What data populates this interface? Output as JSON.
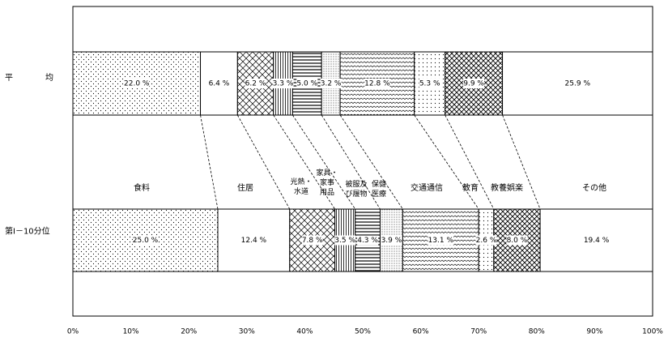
{
  "chart_data": {
    "type": "stacked-bar-100",
    "orientation": "horizontal",
    "grid": false,
    "xlim": [
      0,
      100
    ],
    "x_ticks": [
      "0%",
      "10%",
      "20%",
      "30%",
      "40%",
      "50%",
      "60%",
      "70%",
      "80%",
      "90%",
      "100%"
    ],
    "rows": [
      {
        "name": "平　　　　均",
        "values": [
          22.0,
          6.4,
          6.2,
          3.3,
          5.0,
          3.2,
          12.8,
          5.3,
          9.9,
          25.9
        ],
        "value_labels": [
          "22.0 %",
          "6.4 %",
          "6.2 %",
          "3.3 %",
          "5.0 %",
          "3.2 %",
          "12.8 %",
          "5.3 %",
          "9.9 %",
          "25.9 %"
        ]
      },
      {
        "name": "第Ⅰ－10分位",
        "values": [
          25.0,
          12.4,
          7.8,
          3.5,
          4.3,
          3.9,
          13.1,
          2.6,
          8.0,
          19.4
        ],
        "value_labels": [
          "25.0 %",
          "12.4 %",
          "7.8 %",
          "3.5 %",
          "4.3 %",
          "3.9 %",
          "13.1 %",
          "2.6 %",
          "8.0 %",
          "19.4 %"
        ]
      }
    ],
    "categories": [
      {
        "name": "食料",
        "pattern": "dots"
      },
      {
        "name": "住居",
        "pattern": "none"
      },
      {
        "name": "光熱・水道",
        "lines": [
          "光熱・",
          "水道"
        ],
        "pattern": "diag-cross"
      },
      {
        "name": "家具・家事用品",
        "lines": [
          "家具・",
          "家事",
          "用品"
        ],
        "pattern": "vertical"
      },
      {
        "name": "被服及び履物",
        "lines": [
          "被服及",
          "び履物"
        ],
        "pattern": "horizontal"
      },
      {
        "name": "保健医療",
        "lines": [
          "保健",
          "医療"
        ],
        "pattern": "fine-dots"
      },
      {
        "name": "交通通信",
        "pattern": "wave"
      },
      {
        "name": "教育",
        "pattern": "sparse-dots"
      },
      {
        "name": "教養娯楽",
        "pattern": "cross-hatch"
      },
      {
        "name": "その他",
        "pattern": "none"
      }
    ]
  }
}
